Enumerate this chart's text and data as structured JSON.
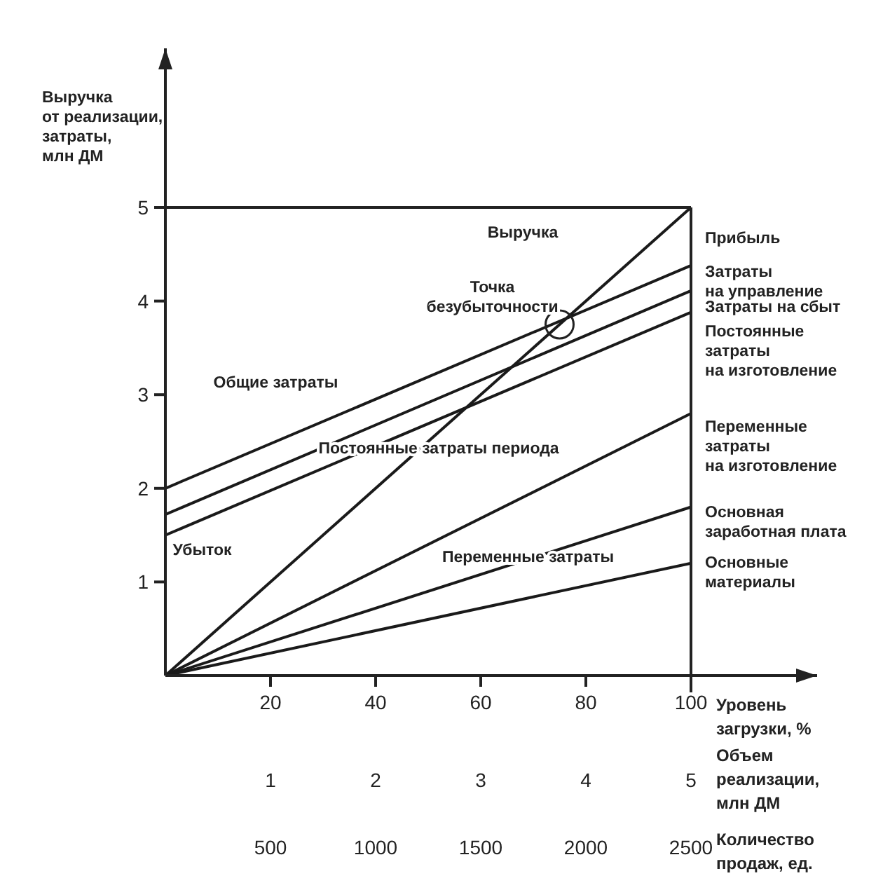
{
  "chart_data": {
    "type": "line",
    "ylabel": "Выручка\nот реализации,\nзатраты,\nмлн ДМ",
    "xlabel": "Уровень\nзагрузки, %",
    "x2label": "Объем\nреализации,\nмлн ДМ",
    "x": [
      0,
      100
    ],
    "xlim": [
      0,
      124
    ],
    "xticks": [
      20,
      40,
      60,
      80,
      100
    ],
    "x2lim": [
      0,
      6.2
    ],
    "x2ticks": [
      1,
      2,
      3,
      4,
      5
    ],
    "ylim": [
      0,
      6.7
    ],
    "yticks": [
      1,
      2,
      3,
      4,
      5
    ],
    "marker": "none",
    "line_style": "solid",
    "series": [
      {
        "color": "#1a1a1a",
        "values": [
          0,
          5
        ]
      },
      {
        "color": "#1a1a1a",
        "values": [
          2,
          4.38
        ]
      },
      {
        "color": "#1a1a1a",
        "values": [
          1.72,
          4.11
        ]
      },
      {
        "color": "#1a1a1a",
        "values": [
          1.5,
          3.88
        ]
      },
      {
        "color": "#1a1a1a",
        "values": [
          0,
          2.8
        ]
      },
      {
        "color": "#1a1a1a",
        "values": [
          0,
          1.8
        ]
      },
      {
        "color": "#1a1a1a",
        "values": [
          0,
          1.2
        ]
      }
    ],
    "annotations": [
      {
        "text": "Точка\nбезубыточности",
        "x": 75,
        "y": 3.75
      },
      "Выручка",
      "Общие затраты",
      "Постоянные затраты периода",
      "Убыток",
      "Переменные затраты",
      "Прибыль",
      "Затраты\nна управление",
      {
        "text": "Затраты на сбыт",
        "x": 100,
        "y": 3.93
      },
      "Постоянные\nзатраты\nна изготовление",
      "Переменные\nзатраты\nна изготовление",
      "Основная\nзаработная плата",
      "Основные\nматериалы",
      "Количество\nпродаж, ед.",
      "500",
      "1000",
      "1500",
      "2000",
      "2500"
    ]
  }
}
